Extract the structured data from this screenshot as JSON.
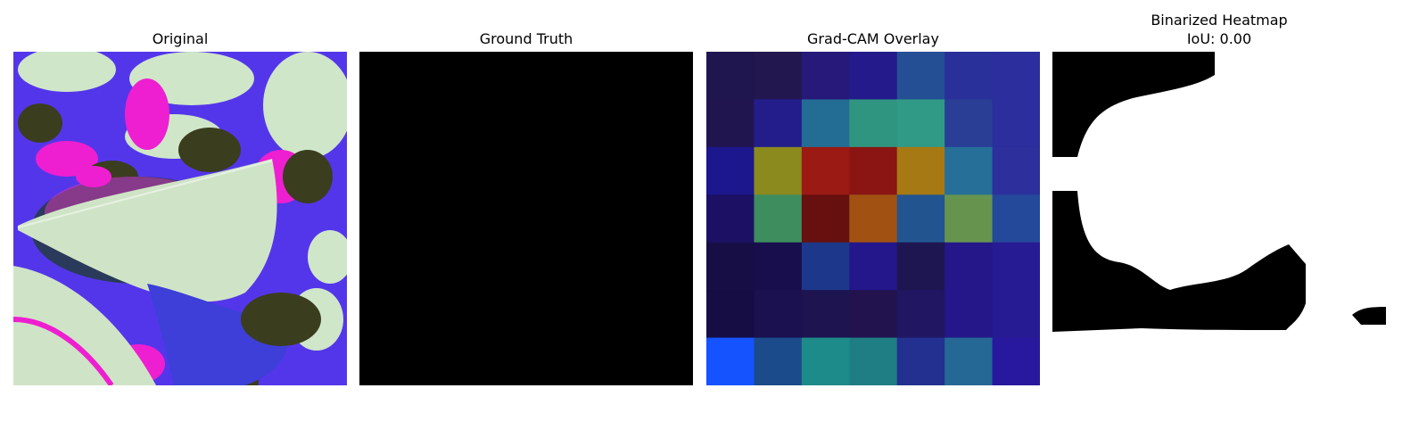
{
  "panels": {
    "original": {
      "title": "Original"
    },
    "ground_truth": {
      "title": "Ground Truth"
    },
    "gradcam": {
      "title": "Grad-CAM Overlay",
      "grid": [
        [
          "#1f1650",
          "#22184f",
          "#26197a",
          "#241a8b",
          "#244f94",
          "#2a309a",
          "#2b2e9c"
        ],
        [
          "#211550",
          "#231d8c",
          "#236c94",
          "#2f9580",
          "#309a86",
          "#2a3e96",
          "#2b2e9c"
        ],
        [
          "#1d178d",
          "#8a8a1e",
          "#9b1a14",
          "#8a1512",
          "#a67914",
          "#256f99",
          "#2c2f9c"
        ],
        [
          "#1b1063",
          "#3e8d5e",
          "#671010",
          "#a15212",
          "#22558f",
          "#66944f",
          "#25499a"
        ],
        [
          "#170e46",
          "#180e4e",
          "#1d388a",
          "#24168b",
          "#1e1650",
          "#25178a",
          "#271b94"
        ],
        [
          "#170d45",
          "#1b1050",
          "#1d1450",
          "#22134f",
          "#201662",
          "#25178a",
          "#271b94"
        ],
        [
          "#1453ff",
          "#1b4b8a",
          "#1d8b8a",
          "#1f7d84",
          "#233090",
          "#256795",
          "#28189e"
        ]
      ]
    },
    "binarized": {
      "title": "Binarized Heatmap",
      "subtitle": "IoU: 0.00"
    }
  }
}
